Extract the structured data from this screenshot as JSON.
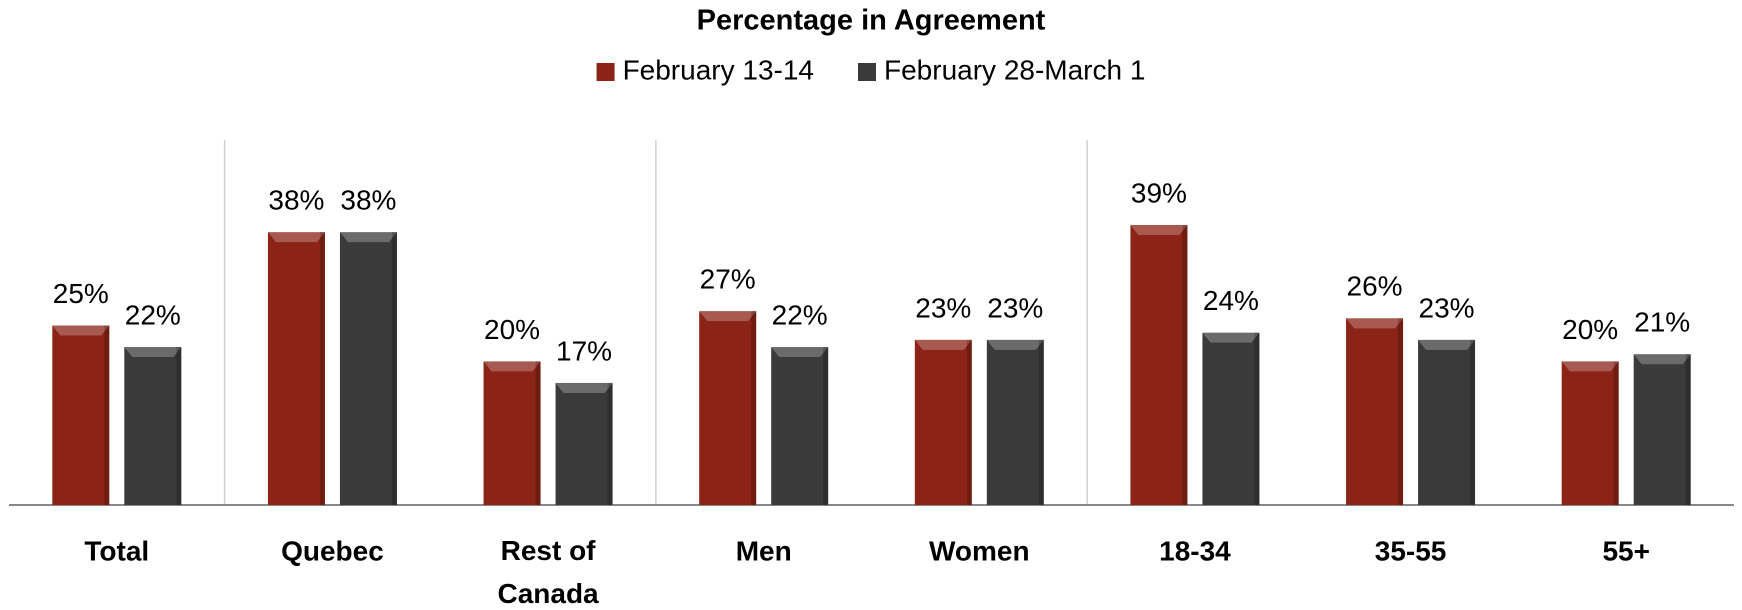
{
  "chart_data": {
    "type": "bar",
    "title": "Percentage in Agreement",
    "categories": [
      "Total",
      "Quebec",
      "Rest of Canada",
      "Men",
      "Women",
      "18-34",
      "35-55",
      "55+"
    ],
    "series": [
      {
        "name": "February 13-14",
        "color": "#8b2316",
        "values": [
          25,
          38,
          20,
          27,
          23,
          39,
          26,
          20
        ],
        "value_labels": [
          "25%",
          "38%",
          "20%",
          "27%",
          "23%",
          "39%",
          "26%",
          "20%"
        ]
      },
      {
        "name": "February 28-March 1",
        "color": "#3a3a3a",
        "values": [
          22,
          38,
          17,
          22,
          23,
          24,
          23,
          21
        ],
        "value_labels": [
          "22%",
          "38%",
          "17%",
          "22%",
          "23%",
          "24%",
          "23%",
          "21%"
        ]
      }
    ],
    "ylim": [
      0,
      50
    ],
    "legend": "top"
  }
}
